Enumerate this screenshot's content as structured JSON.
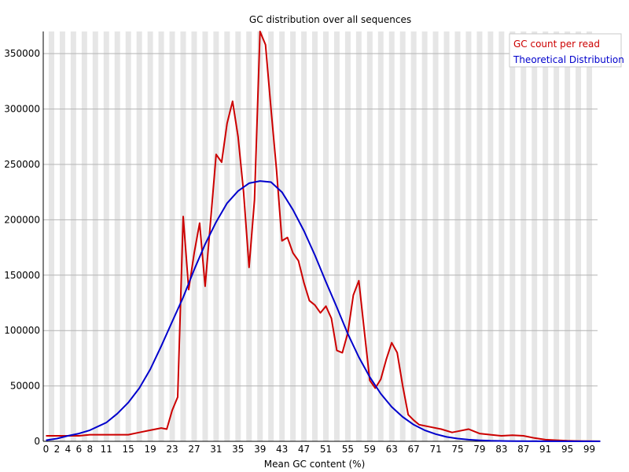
{
  "chart_data": {
    "type": "line",
    "title": "GC distribution over all sequences",
    "xlabel": "Mean GC content (%)",
    "ylabel": "",
    "xlim": [
      0,
      101
    ],
    "ylim": [
      0,
      370000
    ],
    "x_tick_labels": [
      "0",
      "2",
      "4",
      "6",
      "8",
      "11",
      "15",
      "19",
      "23",
      "27",
      "31",
      "35",
      "39",
      "43",
      "47",
      "51",
      "55",
      "59",
      "63",
      "67",
      "71",
      "75",
      "79",
      "83",
      "87",
      "91",
      "95",
      "99"
    ],
    "y_ticks": [
      0,
      50000,
      100000,
      150000,
      200000,
      250000,
      300000,
      350000
    ],
    "y_tick_labels": [
      "0",
      "50000",
      "100000",
      "150000",
      "200000",
      "250000",
      "300000",
      "350000"
    ],
    "grid": true,
    "legend_position": "top-right",
    "series": [
      {
        "name": "GC count per read",
        "color": "#cc0000",
        "points": [
          [
            0,
            5000
          ],
          [
            2,
            5000
          ],
          [
            4,
            5000
          ],
          [
            6,
            5000
          ],
          [
            8,
            6000
          ],
          [
            11,
            6000
          ],
          [
            15,
            6000
          ],
          [
            17,
            8000
          ],
          [
            19,
            10000
          ],
          [
            21,
            12000
          ],
          [
            22,
            11000
          ],
          [
            23,
            28000
          ],
          [
            24,
            40000
          ],
          [
            25,
            203000
          ],
          [
            26,
            137000
          ],
          [
            27,
            170000
          ],
          [
            28,
            197000
          ],
          [
            29,
            140000
          ],
          [
            31,
            259000
          ],
          [
            32,
            252000
          ],
          [
            33,
            287000
          ],
          [
            34,
            307000
          ],
          [
            35,
            275000
          ],
          [
            36,
            225000
          ],
          [
            37,
            157000
          ],
          [
            38,
            218000
          ],
          [
            39,
            370000
          ],
          [
            40,
            358000
          ],
          [
            41,
            300000
          ],
          [
            42,
            245000
          ],
          [
            43,
            181000
          ],
          [
            44,
            184000
          ],
          [
            45,
            170000
          ],
          [
            46,
            163000
          ],
          [
            47,
            143000
          ],
          [
            48,
            127000
          ],
          [
            49,
            123000
          ],
          [
            50,
            116000
          ],
          [
            51,
            122000
          ],
          [
            52,
            111000
          ],
          [
            53,
            82000
          ],
          [
            54,
            80000
          ],
          [
            55,
            98000
          ],
          [
            56,
            132000
          ],
          [
            57,
            145000
          ],
          [
            58,
            100000
          ],
          [
            59,
            55000
          ],
          [
            60,
            48000
          ],
          [
            61,
            56000
          ],
          [
            62,
            74000
          ],
          [
            63,
            89000
          ],
          [
            64,
            80000
          ],
          [
            65,
            50000
          ],
          [
            66,
            24000
          ],
          [
            67,
            19000
          ],
          [
            68,
            15000
          ],
          [
            70,
            13000
          ],
          [
            72,
            11000
          ],
          [
            74,
            8000
          ],
          [
            75,
            9000
          ],
          [
            77,
            11000
          ],
          [
            79,
            7000
          ],
          [
            81,
            6000
          ],
          [
            83,
            5000
          ],
          [
            85,
            5500
          ],
          [
            87,
            5000
          ],
          [
            89,
            3000
          ],
          [
            91,
            1500
          ],
          [
            93,
            1000
          ],
          [
            95,
            500
          ],
          [
            97,
            300
          ],
          [
            99,
            200
          ],
          [
            101,
            100
          ]
        ]
      },
      {
        "name": "Theoretical Distribution",
        "color": "#0000cc",
        "points": [
          [
            0,
            1000
          ],
          [
            2,
            2500
          ],
          [
            4,
            5000
          ],
          [
            6,
            7000
          ],
          [
            8,
            10000
          ],
          [
            11,
            17000
          ],
          [
            13,
            25000
          ],
          [
            15,
            35000
          ],
          [
            17,
            48000
          ],
          [
            19,
            65000
          ],
          [
            21,
            86000
          ],
          [
            23,
            108000
          ],
          [
            25,
            130000
          ],
          [
            27,
            155000
          ],
          [
            29,
            178000
          ],
          [
            31,
            198000
          ],
          [
            33,
            215000
          ],
          [
            35,
            226000
          ],
          [
            37,
            233000
          ],
          [
            39,
            235000
          ],
          [
            41,
            234000
          ],
          [
            43,
            225000
          ],
          [
            45,
            209000
          ],
          [
            47,
            190000
          ],
          [
            49,
            168000
          ],
          [
            51,
            144000
          ],
          [
            53,
            121000
          ],
          [
            55,
            97000
          ],
          [
            57,
            76000
          ],
          [
            59,
            58000
          ],
          [
            61,
            43000
          ],
          [
            63,
            31000
          ],
          [
            65,
            22000
          ],
          [
            67,
            15000
          ],
          [
            69,
            10000
          ],
          [
            71,
            6500
          ],
          [
            73,
            4000
          ],
          [
            75,
            2500
          ],
          [
            77,
            1500
          ],
          [
            79,
            900
          ],
          [
            81,
            500
          ],
          [
            85,
            200
          ],
          [
            90,
            50
          ],
          [
            101,
            10
          ]
        ]
      }
    ]
  }
}
